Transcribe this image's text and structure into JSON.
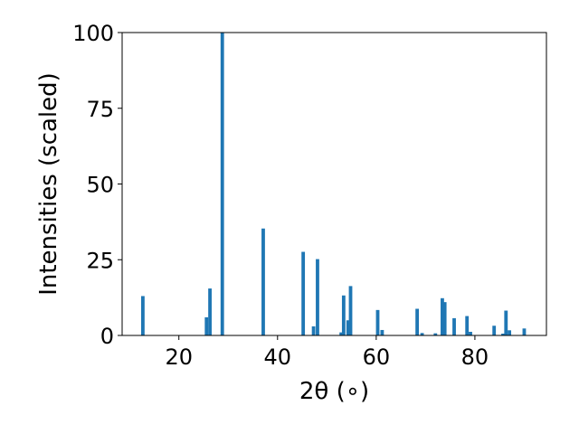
{
  "chart_data": {
    "type": "bar",
    "title": "",
    "xlabel": "2θ (∘)",
    "ylabel": "Intensities (scaled)",
    "xlim": [
      8.5,
      94.5
    ],
    "ylim": [
      0,
      100
    ],
    "x_ticks": [
      20,
      40,
      60,
      80
    ],
    "y_ticks": [
      0,
      25,
      50,
      75,
      100
    ],
    "grid": false,
    "bar_color": "#1f77b4",
    "bar_width": 0.7,
    "x": [
      12.7,
      25.6,
      26.3,
      28.8,
      37.1,
      45.2,
      47.3,
      48.1,
      52.9,
      53.4,
      54.3,
      54.8,
      60.3,
      61.2,
      68.3,
      69.3,
      72.0,
      73.4,
      73.9,
      75.8,
      78.4,
      79.1,
      83.9,
      85.7,
      86.3,
      87.0,
      90.0
    ],
    "values": [
      13,
      6,
      15.5,
      100,
      35.3,
      27.6,
      3,
      25.2,
      1,
      13.2,
      5,
      16.3,
      8.4,
      1.8,
      8.8,
      0.8,
      0.7,
      12.3,
      11,
      5.7,
      6.4,
      1.2,
      3.2,
      0.6,
      8.2,
      1.7,
      2.3
    ]
  }
}
